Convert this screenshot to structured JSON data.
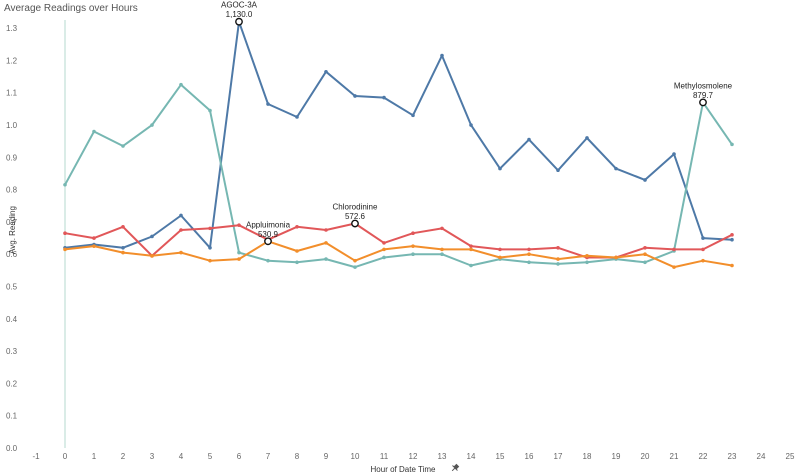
{
  "chart_data": {
    "type": "line",
    "title": "Average Readings over Hours",
    "xlabel": "Hour of Date Time",
    "ylabel": "Avg. Reading",
    "xlim": [
      -1,
      25
    ],
    "ylim": [
      0,
      1.35
    ],
    "x_ticks": [
      -1,
      0,
      1,
      2,
      3,
      4,
      5,
      6,
      7,
      8,
      9,
      10,
      11,
      12,
      13,
      14,
      15,
      16,
      17,
      18,
      19,
      20,
      21,
      22,
      23,
      24,
      25
    ],
    "y_ticks": [
      0.0,
      0.1,
      0.2,
      0.3,
      0.4,
      0.5,
      0.6,
      0.7,
      0.8,
      0.9,
      1.0,
      1.1,
      1.2,
      1.3
    ],
    "grid": false,
    "x": [
      0,
      1,
      2,
      3,
      4,
      5,
      6,
      7,
      8,
      9,
      10,
      11,
      12,
      13,
      14,
      15,
      16,
      17,
      18,
      19,
      20,
      21,
      22,
      23
    ],
    "series": [
      {
        "color": "#4e79a7",
        "values": [
          0.62,
          0.63,
          0.62,
          0.655,
          0.72,
          0.62,
          1.32,
          1.065,
          1.025,
          1.165,
          1.09,
          1.085,
          1.03,
          1.215,
          1.0,
          0.865,
          0.955,
          0.86,
          0.96,
          0.865,
          0.83,
          0.91,
          0.65,
          0.645
        ]
      },
      {
        "color": "#76b7b2",
        "values": [
          0.815,
          0.98,
          0.935,
          1.0,
          1.125,
          1.045,
          0.605,
          0.58,
          0.575,
          0.585,
          0.56,
          0.59,
          0.6,
          0.6,
          0.565,
          0.585,
          0.575,
          0.57,
          0.575,
          0.585,
          0.575,
          0.61,
          1.07,
          0.94
        ]
      },
      {
        "color": "#e15759",
        "values": [
          0.665,
          0.65,
          0.685,
          0.595,
          0.675,
          0.68,
          0.69,
          0.645,
          0.685,
          0.675,
          0.695,
          0.635,
          0.665,
          0.68,
          0.625,
          0.615,
          0.615,
          0.62,
          0.59,
          0.59,
          0.62,
          0.615,
          0.615,
          0.66
        ]
      },
      {
        "color": "#f28e2b",
        "values": [
          0.615,
          0.625,
          0.605,
          0.595,
          0.605,
          0.58,
          0.585,
          0.64,
          0.61,
          0.635,
          0.58,
          0.615,
          0.625,
          0.615,
          0.615,
          0.59,
          0.6,
          0.585,
          0.595,
          0.59,
          0.6,
          0.56,
          0.58,
          0.565
        ]
      }
    ],
    "annotations": [
      {
        "series": 0,
        "x": 6,
        "name": "AGOC-3A",
        "value": "1,130.0"
      },
      {
        "series": 3,
        "x": 7,
        "name": "Appluimonia",
        "value": "530.9"
      },
      {
        "series": 2,
        "x": 10,
        "name": "Chlorodinine",
        "value": "572.6"
      },
      {
        "series": 1,
        "x": 22,
        "name": "Methylosmolene",
        "value": "879.7"
      }
    ],
    "zero_line_color": "#b5d9cf"
  },
  "xaxis_pin_icon": "pin-icon"
}
